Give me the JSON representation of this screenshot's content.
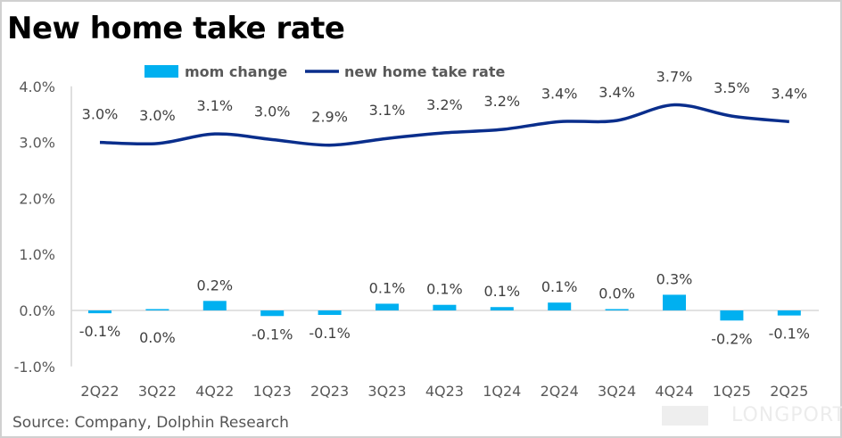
{
  "title": "New home take rate",
  "source": "Source: Company, Dolphin Research",
  "watermark": "LONGPORT",
  "chart_data": {
    "type": "bar+line",
    "categories": [
      "2Q22",
      "3Q22",
      "4Q22",
      "1Q23",
      "2Q23",
      "3Q23",
      "4Q23",
      "1Q24",
      "2Q24",
      "3Q24",
      "4Q24",
      "1Q25",
      "2Q25"
    ],
    "series": [
      {
        "name": "mom change",
        "type": "bar",
        "color": "#00B0F0",
        "values": [
          -0.05,
          0.0,
          0.17,
          -0.1,
          -0.08,
          0.12,
          0.1,
          0.06,
          0.14,
          0.02,
          0.28,
          -0.18,
          -0.09
        ],
        "labels": [
          "-0.1%",
          "0.0%",
          "0.2%",
          "-0.1%",
          "-0.1%",
          "0.1%",
          "0.1%",
          "0.1%",
          "0.1%",
          "0.0%",
          "0.3%",
          "-0.2%",
          "-0.1%"
        ]
      },
      {
        "name": "new home take rate",
        "type": "line",
        "color": "#0A2E8C",
        "values": [
          3.0,
          2.98,
          3.15,
          3.05,
          2.95,
          3.07,
          3.17,
          3.23,
          3.37,
          3.39,
          3.67,
          3.47,
          3.37
        ],
        "labels": [
          "3.0%",
          "3.0%",
          "3.1%",
          "3.0%",
          "2.9%",
          "3.1%",
          "3.2%",
          "3.2%",
          "3.4%",
          "3.4%",
          "3.7%",
          "3.5%",
          "3.4%"
        ]
      }
    ],
    "yticks": [
      "-1.0%",
      "0.0%",
      "1.0%",
      "2.0%",
      "3.0%",
      "4.0%"
    ],
    "ylim": [
      -1.0,
      4.0
    ],
    "legend": "top",
    "grid": false
  }
}
